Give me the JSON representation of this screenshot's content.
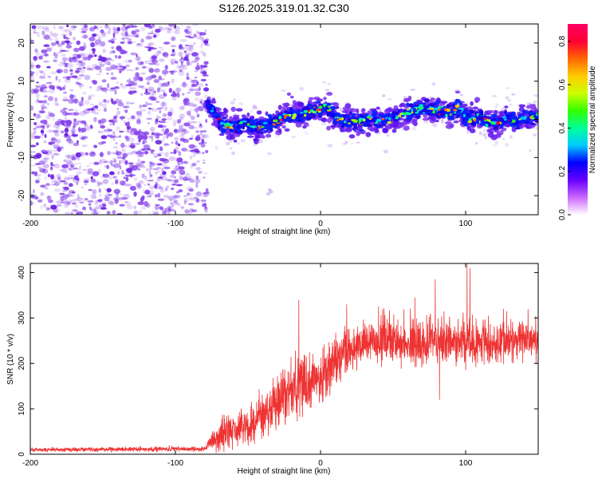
{
  "title": "S126.2025.319.01.32.C30",
  "chart_data": [
    {
      "type": "heatmap",
      "name": "spectrogram",
      "xlabel": "Height of straight line (km)",
      "ylabel": "Frequency (Hz)",
      "xlim": [
        -200,
        150
      ],
      "ylim": [
        -25,
        25
      ],
      "xticks": [
        -200,
        -100,
        0,
        100
      ],
      "xtick_labels": [
        "-200",
        "-100",
        "0",
        "100"
      ],
      "yticks": [
        -20,
        -10,
        0,
        10,
        20
      ],
      "ytick_labels": [
        "-20",
        "-10",
        "0",
        "10",
        "20"
      ],
      "noise_region_x": [
        -200,
        -78
      ],
      "ridge": [
        {
          "x": -80,
          "y": 4.2
        },
        {
          "x": -75,
          "y": 3.0
        },
        {
          "x": -70,
          "y": -0.5
        },
        {
          "x": -65,
          "y": -1.5
        },
        {
          "x": -60,
          "y": -2.0
        },
        {
          "x": -55,
          "y": -1.0
        },
        {
          "x": -50,
          "y": -1.5
        },
        {
          "x": -45,
          "y": -2.0
        },
        {
          "x": -40,
          "y": -2.0
        },
        {
          "x": -35,
          "y": -1.0
        },
        {
          "x": -30,
          "y": -0.5
        },
        {
          "x": -25,
          "y": 0.5
        },
        {
          "x": -20,
          "y": 1.8
        },
        {
          "x": -15,
          "y": 0.5
        },
        {
          "x": -10,
          "y": 1.5
        },
        {
          "x": -5,
          "y": 2.2
        },
        {
          "x": 0,
          "y": 2.5
        },
        {
          "x": 5,
          "y": 3.0
        },
        {
          "x": 10,
          "y": 0.5
        },
        {
          "x": 15,
          "y": -0.5
        },
        {
          "x": 20,
          "y": -0.5
        },
        {
          "x": 25,
          "y": -0.8
        },
        {
          "x": 30,
          "y": 0.0
        },
        {
          "x": 35,
          "y": 0.0
        },
        {
          "x": 40,
          "y": -0.5
        },
        {
          "x": 45,
          "y": 0.0
        },
        {
          "x": 50,
          "y": 0.5
        },
        {
          "x": 55,
          "y": 1.5
        },
        {
          "x": 60,
          "y": 1.5
        },
        {
          "x": 65,
          "y": 2.5
        },
        {
          "x": 70,
          "y": 2.8
        },
        {
          "x": 75,
          "y": 2.5
        },
        {
          "x": 80,
          "y": 2.5
        },
        {
          "x": 85,
          "y": 2.0
        },
        {
          "x": 90,
          "y": 1.5
        },
        {
          "x": 95,
          "y": 3.0
        },
        {
          "x": 100,
          "y": 1.0
        },
        {
          "x": 105,
          "y": 0.0
        },
        {
          "x": 110,
          "y": 1.5
        },
        {
          "x": 115,
          "y": -1.0
        },
        {
          "x": 120,
          "y": -1.0
        },
        {
          "x": 125,
          "y": -0.5
        },
        {
          "x": 130,
          "y": 0.0
        },
        {
          "x": 135,
          "y": -0.5
        },
        {
          "x": 140,
          "y": 0.5
        },
        {
          "x": 145,
          "y": 0.5
        },
        {
          "x": 150,
          "y": 1.0
        }
      ],
      "colorbar": {
        "label": "Normalized spectral amplitude",
        "range": [
          0.0,
          0.88
        ],
        "ticks": [
          0.0,
          0.2,
          0.4,
          0.6,
          0.8
        ],
        "tick_labels": [
          "0.0",
          "0.2",
          "0.4",
          "0.6",
          "0.8"
        ],
        "colors": [
          "#ffffff",
          "#cc66ff",
          "#6600ff",
          "#0000ff",
          "#00ccff",
          "#00ff99",
          "#33ff00",
          "#ccff00",
          "#ffcc00",
          "#ff6600",
          "#ff0033",
          "#ff0066"
        ]
      },
      "noise_color": "#8844ee"
    },
    {
      "type": "line",
      "name": "snr",
      "xlabel": "Height of straight line (km)",
      "ylabel": "SNR (10 * v/v)",
      "xlim": [
        -200,
        150
      ],
      "ylim": [
        0,
        420
      ],
      "xticks": [
        -200,
        -100,
        0,
        100
      ],
      "xtick_labels": [
        "-200",
        "-100",
        "0",
        "100"
      ],
      "yticks": [
        0,
        100,
        200,
        300,
        400
      ],
      "ytick_labels": [
        "0",
        "100",
        "200",
        "300",
        "400"
      ],
      "color": "#ee3333",
      "trend": [
        {
          "x": -200,
          "y": 10
        },
        {
          "x": -80,
          "y": 12
        },
        {
          "x": -75,
          "y": 25
        },
        {
          "x": -65,
          "y": 50
        },
        {
          "x": -50,
          "y": 60
        },
        {
          "x": -40,
          "y": 85
        },
        {
          "x": -30,
          "y": 110
        },
        {
          "x": -20,
          "y": 140
        },
        {
          "x": -10,
          "y": 160
        },
        {
          "x": 0,
          "y": 170
        },
        {
          "x": 10,
          "y": 195
        },
        {
          "x": 20,
          "y": 225
        },
        {
          "x": 30,
          "y": 245
        },
        {
          "x": 40,
          "y": 250
        },
        {
          "x": 50,
          "y": 255
        },
        {
          "x": 60,
          "y": 245
        },
        {
          "x": 70,
          "y": 240
        },
        {
          "x": 80,
          "y": 250
        },
        {
          "x": 90,
          "y": 245
        },
        {
          "x": 100,
          "y": 240
        },
        {
          "x": 110,
          "y": 248
        },
        {
          "x": 120,
          "y": 245
        },
        {
          "x": 130,
          "y": 248
        },
        {
          "x": 140,
          "y": 252
        },
        {
          "x": 150,
          "y": 255
        }
      ],
      "noise_amplitude": [
        {
          "x": -200,
          "y": 4
        },
        {
          "x": -80,
          "y": 5
        },
        {
          "x": -70,
          "y": 30
        },
        {
          "x": -40,
          "y": 45
        },
        {
          "x": -20,
          "y": 60
        },
        {
          "x": 0,
          "y": 55
        },
        {
          "x": 20,
          "y": 45
        },
        {
          "x": 60,
          "y": 45
        },
        {
          "x": 100,
          "y": 45
        },
        {
          "x": 150,
          "y": 35
        }
      ],
      "spikes": [
        {
          "x": -15,
          "y": 340
        },
        {
          "x": 18,
          "y": 330
        },
        {
          "x": 40,
          "y": 325
        },
        {
          "x": 65,
          "y": 345
        },
        {
          "x": 79,
          "y": 385
        },
        {
          "x": 101,
          "y": 420
        },
        {
          "x": 103,
          "y": 410
        },
        {
          "x": 143,
          "y": 320
        },
        {
          "x": 101,
          "y": 120
        },
        {
          "x": 82,
          "y": 120
        }
      ]
    }
  ]
}
